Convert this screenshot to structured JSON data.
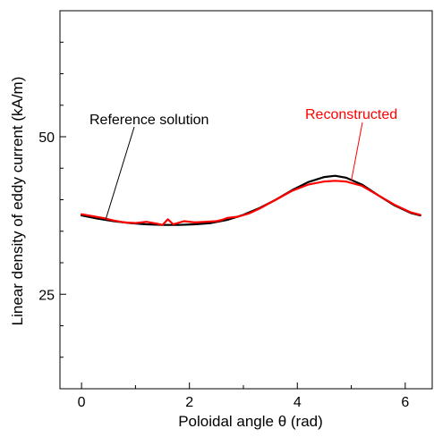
{
  "chart_data": {
    "type": "line",
    "title": "",
    "xlabel": "Poloidal angle  θ (rad)",
    "ylabel": "Linear density of eddy current (kA/m)",
    "xlim": [
      -0.4,
      6.5
    ],
    "ylim": [
      10,
      70
    ],
    "x_major_ticks": [
      0,
      2,
      4,
      6
    ],
    "x_minor_ticks": [
      1,
      3,
      5
    ],
    "y_major_ticks": [
      25,
      50
    ],
    "y_minor_ticks": [
      15,
      20,
      30,
      35,
      40,
      45,
      55,
      60,
      65
    ],
    "grid": false,
    "series": [
      {
        "name": "Reference solution",
        "color": "#000000",
        "x": [
          0.0,
          0.3,
          0.6,
          0.9,
          1.2,
          1.5,
          1.8,
          2.1,
          2.4,
          2.7,
          3.0,
          3.3,
          3.6,
          3.9,
          4.2,
          4.5,
          4.7,
          4.9,
          5.2,
          5.5,
          5.8,
          6.1,
          6.28
        ],
        "values": [
          37.5,
          37.0,
          36.6,
          36.3,
          36.1,
          36.0,
          36.0,
          36.1,
          36.3,
          36.8,
          37.6,
          38.7,
          40.0,
          41.5,
          42.8,
          43.6,
          43.8,
          43.5,
          42.4,
          40.7,
          39.1,
          37.9,
          37.5
        ]
      },
      {
        "name": "Reconstructed",
        "color": "#ff0000",
        "x": [
          0.0,
          0.2,
          0.4,
          0.6,
          0.8,
          1.0,
          1.2,
          1.4,
          1.5,
          1.6,
          1.7,
          1.9,
          2.1,
          2.3,
          2.5,
          2.6,
          2.7,
          2.9,
          3.1,
          3.3,
          3.6,
          3.9,
          4.2,
          4.5,
          4.7,
          4.9,
          5.2,
          5.5,
          5.8,
          6.1,
          6.28
        ],
        "values": [
          37.7,
          37.4,
          37.1,
          36.7,
          36.4,
          36.3,
          36.5,
          36.2,
          36.0,
          36.9,
          36.1,
          36.6,
          36.4,
          36.5,
          36.6,
          36.8,
          37.1,
          37.3,
          37.8,
          38.6,
          40.0,
          41.4,
          42.4,
          42.9,
          43.0,
          42.9,
          42.2,
          40.7,
          39.2,
          38.0,
          37.6
        ]
      }
    ],
    "annotations": [
      {
        "text": "Reference solution",
        "color": "#000000",
        "target": [
          0.45,
          36.9
        ]
      },
      {
        "text": "Reconstructed",
        "color": "#ff0000",
        "target": [
          5.0,
          43.0
        ]
      }
    ]
  }
}
